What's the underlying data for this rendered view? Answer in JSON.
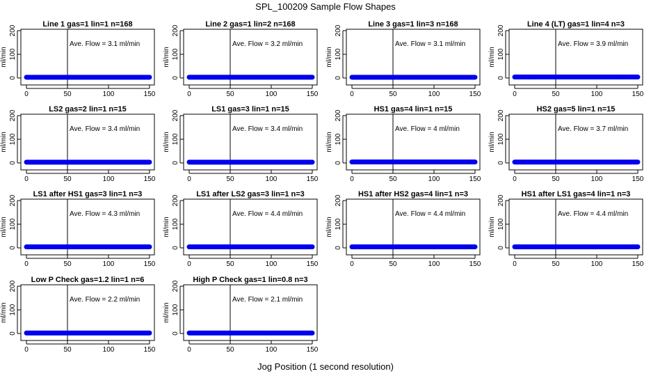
{
  "title": "SPL_100209  Sample Flow Shapes",
  "xlabel": "Jog Position (1 second resolution)",
  "ylabel": "ml/min",
  "colors": {
    "series": "#0000ee",
    "axis": "#000000"
  },
  "chart_data": [
    {
      "type": "scatter",
      "title": "Line 1 gas=1 lin=1 n=168",
      "annotation": "Ave. Flow =  3.1  ml/min",
      "xlim": [
        0,
        150
      ],
      "ylim": [
        0,
        200
      ],
      "xticks": [
        "0",
        "50",
        "100",
        "150"
      ],
      "yticks": [
        "0",
        "100",
        "200"
      ],
      "vline_x": 50,
      "y_value": 3.1
    },
    {
      "type": "scatter",
      "title": "Line 2 gas=1 lin=2 n=168",
      "annotation": "Ave. Flow =  3.2  ml/min",
      "xlim": [
        0,
        150
      ],
      "ylim": [
        0,
        200
      ],
      "xticks": [
        "0",
        "50",
        "100",
        "150"
      ],
      "yticks": [
        "0",
        "100",
        "200"
      ],
      "vline_x": 50,
      "y_value": 3.2
    },
    {
      "type": "scatter",
      "title": "Line 3 gas=1 lin=3 n=168",
      "annotation": "Ave. Flow =  3.1  ml/min",
      "xlim": [
        0,
        150
      ],
      "ylim": [
        0,
        200
      ],
      "xticks": [
        "0",
        "50",
        "100",
        "150"
      ],
      "yticks": [
        "0",
        "100",
        "200"
      ],
      "vline_x": 50,
      "y_value": 3.1
    },
    {
      "type": "scatter",
      "title": "Line 4 (LT) gas=1 lin=4 n=3",
      "annotation": "Ave. Flow =  3.9  ml/min",
      "xlim": [
        0,
        150
      ],
      "ylim": [
        0,
        200
      ],
      "xticks": [
        "0",
        "50",
        "100",
        "150"
      ],
      "yticks": [
        "0",
        "100",
        "200"
      ],
      "vline_x": 50,
      "y_value": 3.9
    },
    {
      "type": "scatter",
      "title": "LS2 gas=2 lin=1 n=15",
      "annotation": "Ave. Flow =  3.4  ml/min",
      "xlim": [
        0,
        150
      ],
      "ylim": [
        0,
        200
      ],
      "xticks": [
        "0",
        "50",
        "100",
        "150"
      ],
      "yticks": [
        "0",
        "100",
        "200"
      ],
      "vline_x": 50,
      "y_value": 3.4
    },
    {
      "type": "scatter",
      "title": "LS1 gas=3 lin=1 n=15",
      "annotation": "Ave. Flow =  3.4  ml/min",
      "xlim": [
        0,
        150
      ],
      "ylim": [
        0,
        200
      ],
      "xticks": [
        "0",
        "50",
        "100",
        "150"
      ],
      "yticks": [
        "0",
        "100",
        "200"
      ],
      "vline_x": 50,
      "y_value": 3.4
    },
    {
      "type": "scatter",
      "title": "HS1 gas=4 lin=1 n=15",
      "annotation": "Ave. Flow =  4  ml/min",
      "xlim": [
        0,
        150
      ],
      "ylim": [
        0,
        200
      ],
      "xticks": [
        "0",
        "50",
        "100",
        "150"
      ],
      "yticks": [
        "0",
        "100",
        "200"
      ],
      "vline_x": 50,
      "y_value": 4
    },
    {
      "type": "scatter",
      "title": "HS2 gas=5 lin=1 n=15",
      "annotation": "Ave. Flow =  3.7  ml/min",
      "xlim": [
        0,
        150
      ],
      "ylim": [
        0,
        200
      ],
      "xticks": [
        "0",
        "50",
        "100",
        "150"
      ],
      "yticks": [
        "0",
        "100",
        "200"
      ],
      "vline_x": 50,
      "y_value": 3.7
    },
    {
      "type": "scatter",
      "title": "LS1 after HS1 gas=3 lin=1 n=3",
      "annotation": "Ave. Flow =  4.3  ml/min",
      "xlim": [
        0,
        150
      ],
      "ylim": [
        0,
        200
      ],
      "xticks": [
        "0",
        "50",
        "100",
        "150"
      ],
      "yticks": [
        "0",
        "100",
        "200"
      ],
      "vline_x": 50,
      "y_value": 4.3
    },
    {
      "type": "scatter",
      "title": "LS1 after LS2 gas=3 lin=1 n=3",
      "annotation": "Ave. Flow =  4.4  ml/min",
      "xlim": [
        0,
        150
      ],
      "ylim": [
        0,
        200
      ],
      "xticks": [
        "0",
        "50",
        "100",
        "150"
      ],
      "yticks": [
        "0",
        "100",
        "200"
      ],
      "vline_x": 50,
      "y_value": 4.4
    },
    {
      "type": "scatter",
      "title": "HS1 after HS2 gas=4 lin=1 n=3",
      "annotation": "Ave. Flow =  4.4  ml/min",
      "xlim": [
        0,
        150
      ],
      "ylim": [
        0,
        200
      ],
      "xticks": [
        "0",
        "50",
        "100",
        "150"
      ],
      "yticks": [
        "0",
        "100",
        "200"
      ],
      "vline_x": 50,
      "y_value": 4.4
    },
    {
      "type": "scatter",
      "title": "HS1 after LS1 gas=4 lin=1 n=3",
      "annotation": "Ave. Flow =  4.4  ml/min",
      "xlim": [
        0,
        150
      ],
      "ylim": [
        0,
        200
      ],
      "xticks": [
        "0",
        "50",
        "100",
        "150"
      ],
      "yticks": [
        "0",
        "100",
        "200"
      ],
      "vline_x": 50,
      "y_value": 4.4
    },
    {
      "type": "scatter",
      "title": "Low P Check gas=1.2 lin=1 n=6",
      "annotation": "Ave. Flow =  2.2  ml/min",
      "xlim": [
        0,
        150
      ],
      "ylim": [
        0,
        200
      ],
      "xticks": [
        "0",
        "50",
        "100",
        "150"
      ],
      "yticks": [
        "0",
        "100",
        "200"
      ],
      "vline_x": 50,
      "y_value": 2.2
    },
    {
      "type": "scatter",
      "title": "High P Check gas=1 lin=0.8 n=3",
      "annotation": "Ave. Flow =  2.1  ml/min",
      "xlim": [
        0,
        150
      ],
      "ylim": [
        0,
        200
      ],
      "xticks": [
        "0",
        "50",
        "100",
        "150"
      ],
      "yticks": [
        "0",
        "100",
        "200"
      ],
      "vline_x": 50,
      "y_value": 2.1
    }
  ]
}
